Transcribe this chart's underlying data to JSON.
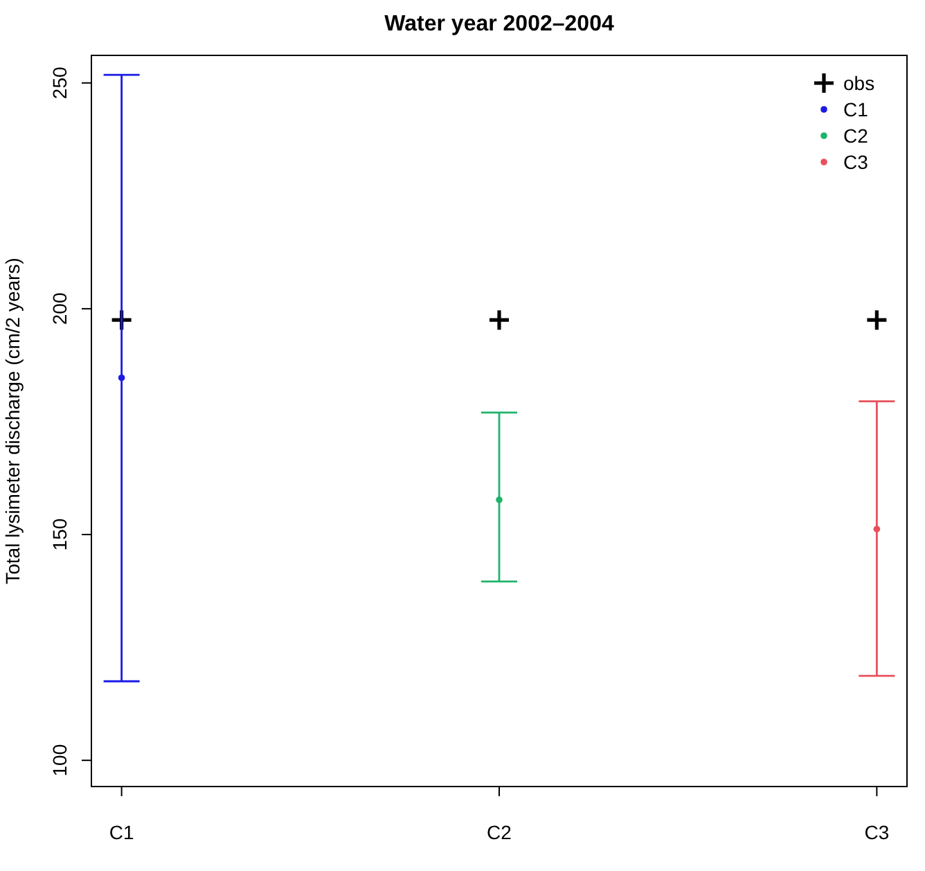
{
  "chart_data": {
    "type": "scatter",
    "title": "Water year 2002–2004",
    "ylabel": "Total lysimeter discharge (cm/2 years)",
    "categories": [
      "C1",
      "C2",
      "C3"
    ],
    "ylim": [
      94.2,
      256.1
    ],
    "yticks": [
      100,
      150,
      200,
      250
    ],
    "legend": "top right",
    "grid": false,
    "series": [
      {
        "name": "obs",
        "color": "#000000",
        "marker": "cross",
        "values": [
          197.5,
          197.5,
          197.5
        ]
      },
      {
        "name": "C1",
        "color": "#1a1ae6",
        "marker": "circle",
        "values": [
          184.7,
          null,
          null
        ],
        "errors": [
          [
            117.5,
            251.8
          ],
          null,
          null
        ]
      },
      {
        "name": "C2",
        "color": "#1fb36b",
        "marker": "circle",
        "values": [
          null,
          157.7,
          null
        ],
        "errors": [
          null,
          [
            139.6,
            177.0
          ],
          null
        ]
      },
      {
        "name": "C3",
        "color": "#e8505b",
        "marker": "circle",
        "values": [
          null,
          null,
          151.2
        ],
        "errors": [
          null,
          null,
          [
            118.7,
            179.5
          ]
        ]
      }
    ]
  }
}
